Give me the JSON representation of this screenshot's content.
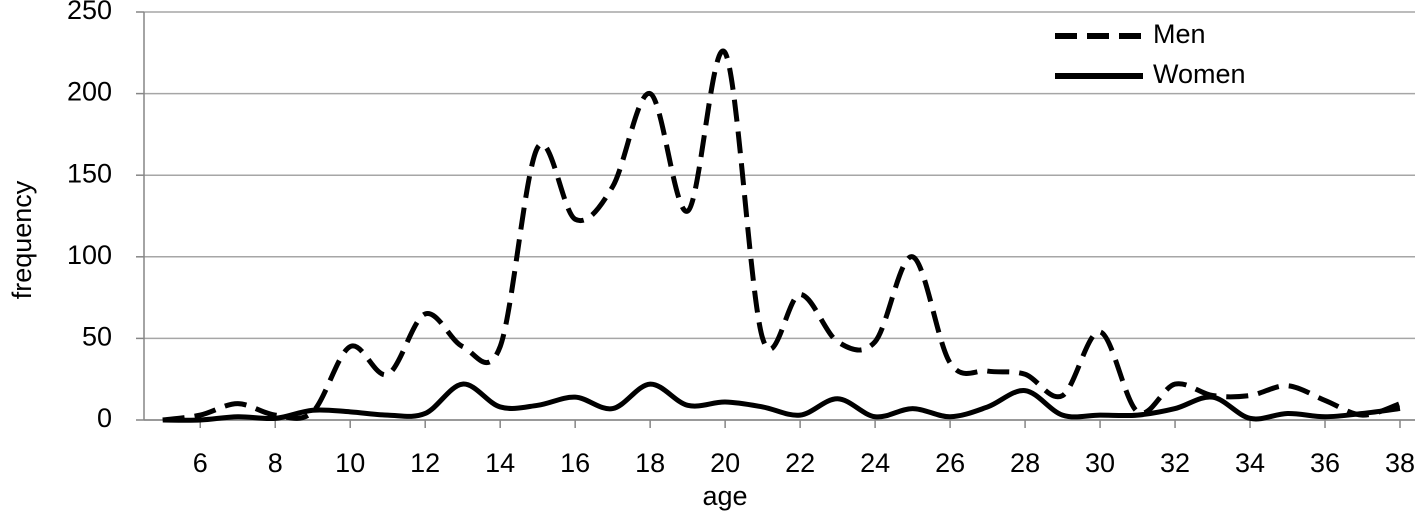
{
  "chart_data": {
    "type": "line",
    "x_label": "age",
    "y_label": "frequency",
    "x": [
      5,
      6,
      7,
      8,
      9,
      10,
      11,
      12,
      13,
      14,
      15,
      16,
      17,
      18,
      19,
      20,
      21,
      22,
      23,
      24,
      25,
      26,
      27,
      28,
      29,
      30,
      31,
      32,
      33,
      34,
      35,
      36,
      37,
      38
    ],
    "series": [
      {
        "name": "Men",
        "color": "#000000",
        "dash": true,
        "values": [
          0,
          3,
          10,
          3,
          5,
          45,
          28,
          65,
          45,
          45,
          167,
          123,
          143,
          200,
          128,
          225,
          50,
          77,
          48,
          48,
          100,
          35,
          30,
          28,
          15,
          54,
          5,
          22,
          15,
          15,
          21,
          12,
          3,
          10
        ]
      },
      {
        "name": "Women",
        "color": "#000000",
        "dash": false,
        "values": [
          0,
          0,
          2,
          1,
          6,
          5,
          3,
          4,
          22,
          8,
          9,
          14,
          7,
          22,
          9,
          11,
          8,
          3,
          13,
          2,
          7,
          2,
          8,
          18,
          3,
          3,
          3,
          7,
          14,
          1,
          4,
          2,
          4,
          7
        ]
      }
    ],
    "xlim": [
      4.5,
      38.4
    ],
    "xticks": [
      6,
      8,
      10,
      12,
      14,
      16,
      18,
      20,
      22,
      24,
      26,
      28,
      30,
      32,
      34,
      36,
      38
    ],
    "ylim": [
      0,
      250
    ],
    "yticks": [
      0,
      50,
      100,
      150,
      200,
      250
    ],
    "grid": true,
    "legend": "top-right"
  }
}
